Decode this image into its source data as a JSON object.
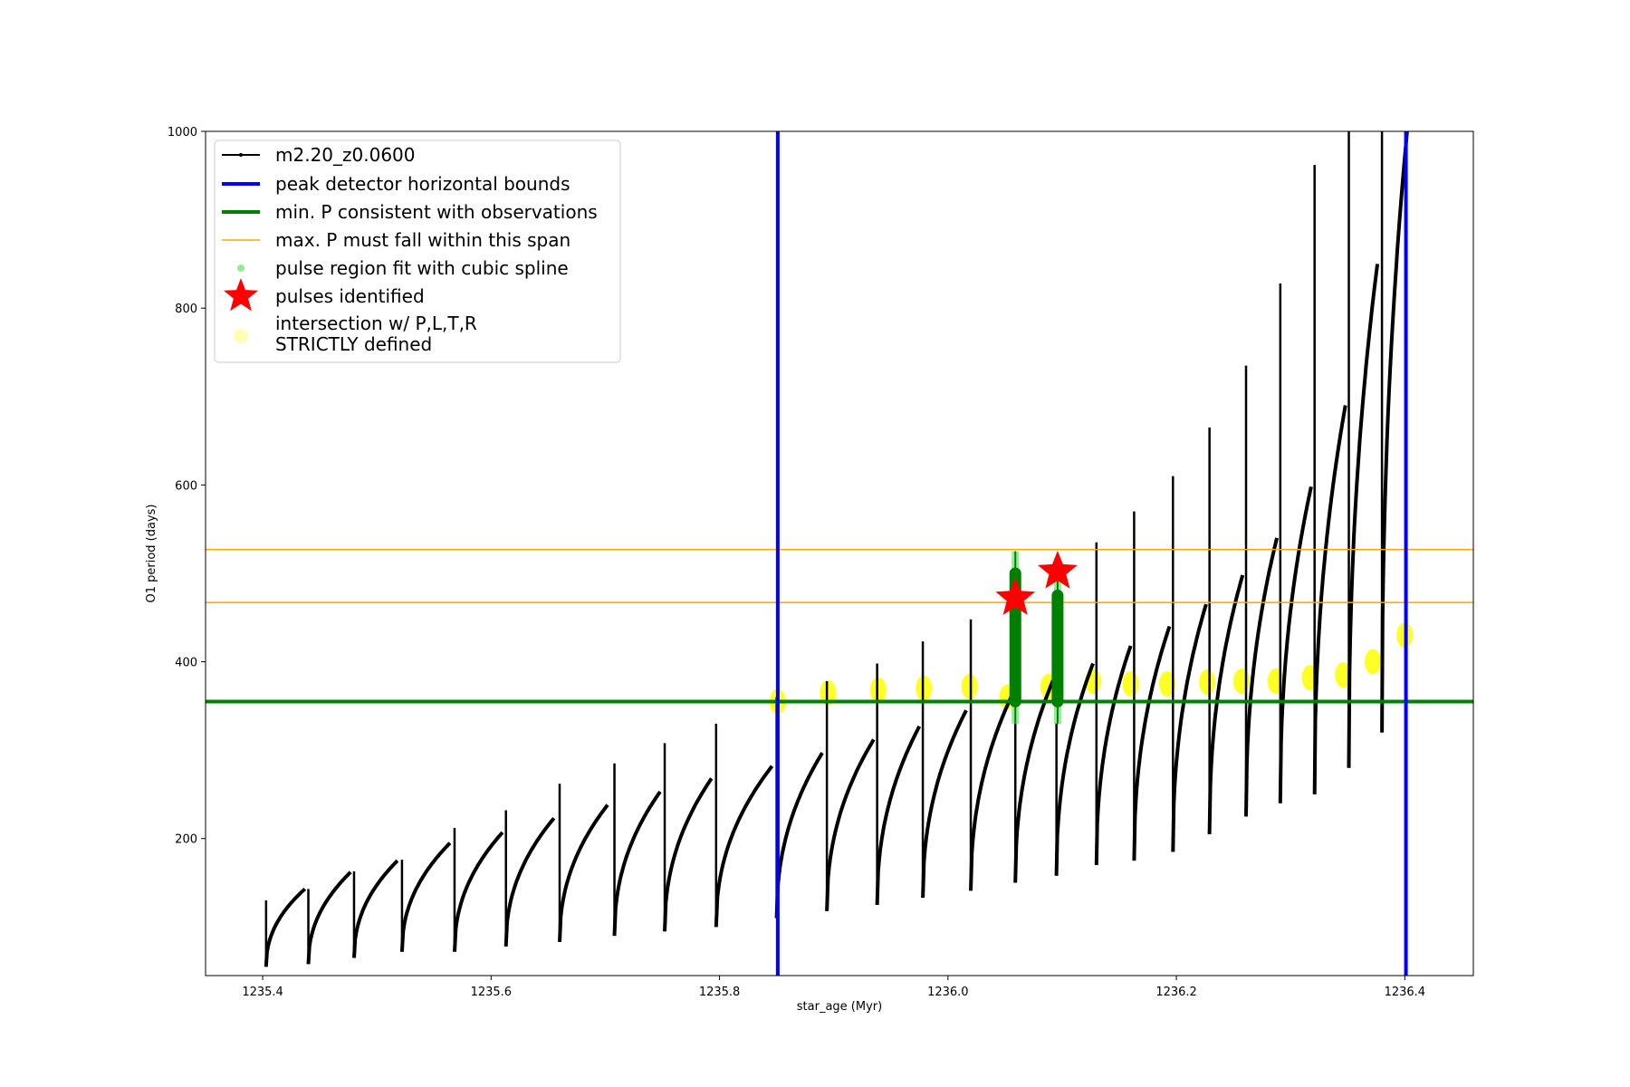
{
  "chart_data": {
    "type": "line",
    "title": "",
    "xlabel": "star_age (Myr)",
    "ylabel": "O1 period (days)",
    "xlim": [
      1235.35,
      1236.46
    ],
    "ylim": [
      45,
      1000
    ],
    "xticks": [
      1235.4,
      1235.6,
      1235.8,
      1236.0,
      1236.2,
      1236.4
    ],
    "xtick_labels": [
      "1235.4",
      "1235.6",
      "1235.8",
      "1236.0",
      "1236.2",
      "1236.4"
    ],
    "yticks": [
      200,
      400,
      600,
      800,
      1000
    ],
    "ytick_labels": [
      "200",
      "400",
      "600",
      "800",
      "1000"
    ],
    "grid": false,
    "legend_position": "top-left",
    "colors": {
      "series": "#000000",
      "bounds": "#0000ff",
      "min_p": "#008000",
      "max_p": "#ffa500",
      "spline": "#90ee90",
      "pulses": "#ff0000",
      "intersection": "#ffff00"
    },
    "series": [
      {
        "name": "m2.20_z0.0600",
        "style": "black line with small dots",
        "pulse_cycles": [
          {
            "start": 1235.403,
            "end": 1235.437,
            "min": 55,
            "peak": 143,
            "spike": 130
          },
          {
            "start": 1235.44,
            "end": 1235.477,
            "min": 58,
            "peak": 162,
            "spike": 143
          },
          {
            "start": 1235.48,
            "end": 1235.518,
            "min": 65,
            "peak": 175,
            "spike": 163
          },
          {
            "start": 1235.522,
            "end": 1235.564,
            "min": 72,
            "peak": 195,
            "spike": 176
          },
          {
            "start": 1235.568,
            "end": 1235.61,
            "min": 72,
            "peak": 207,
            "spike": 212
          },
          {
            "start": 1235.613,
            "end": 1235.655,
            "min": 78,
            "peak": 223,
            "spike": 232
          },
          {
            "start": 1235.66,
            "end": 1235.702,
            "min": 83,
            "peak": 238,
            "spike": 262
          },
          {
            "start": 1235.708,
            "end": 1235.748,
            "min": 90,
            "peak": 253,
            "spike": 285
          },
          {
            "start": 1235.752,
            "end": 1235.793,
            "min": 95,
            "peak": 268,
            "spike": 308
          },
          {
            "start": 1235.797,
            "end": 1235.846,
            "min": 100,
            "peak": 282,
            "spike": 330
          },
          {
            "start": 1235.85,
            "end": 1235.89,
            "min": 110,
            "peak": 297,
            "spike": 360
          },
          {
            "start": 1235.894,
            "end": 1235.935,
            "min": 118,
            "peak": 312,
            "spike": 378
          },
          {
            "start": 1235.938,
            "end": 1235.975,
            "min": 125,
            "peak": 327,
            "spike": 398
          },
          {
            "start": 1235.978,
            "end": 1236.016,
            "min": 133,
            "peak": 345,
            "spike": 423
          },
          {
            "start": 1236.02,
            "end": 1236.056,
            "min": 141,
            "peak": 362,
            "spike": 448
          },
          {
            "start": 1236.059,
            "end": 1236.092,
            "min": 150,
            "peak": 379,
            "spike": 490
          },
          {
            "start": 1236.095,
            "end": 1236.127,
            "min": 158,
            "peak": 398,
            "spike": 505
          },
          {
            "start": 1236.13,
            "end": 1236.16,
            "min": 170,
            "peak": 418,
            "spike": 535
          },
          {
            "start": 1236.163,
            "end": 1236.194,
            "min": 175,
            "peak": 440,
            "spike": 570
          },
          {
            "start": 1236.197,
            "end": 1236.226,
            "min": 185,
            "peak": 465,
            "spike": 610
          },
          {
            "start": 1236.229,
            "end": 1236.258,
            "min": 205,
            "peak": 498,
            "spike": 665
          },
          {
            "start": 1236.261,
            "end": 1236.288,
            "min": 225,
            "peak": 540,
            "spike": 735
          },
          {
            "start": 1236.291,
            "end": 1236.318,
            "min": 240,
            "peak": 598,
            "spike": 828
          },
          {
            "start": 1236.321,
            "end": 1236.348,
            "min": 250,
            "peak": 690,
            "spike": 962
          },
          {
            "start": 1236.351,
            "end": 1236.376,
            "min": 280,
            "peak": 850,
            "spike": 1000
          },
          {
            "start": 1236.38,
            "end": 1236.402,
            "min": 320,
            "peak": 1000,
            "spike": 1000
          }
        ]
      },
      {
        "name": "peak detector horizontal bounds",
        "type": "vline",
        "x": [
          1235.851,
          1236.401
        ]
      },
      {
        "name": "min. P consistent with observations",
        "type": "hline",
        "y": [
          355
        ]
      },
      {
        "name": "max. P must fall within this span",
        "type": "hline",
        "y": [
          467,
          527
        ]
      },
      {
        "name": "pulse region fit with cubic spline",
        "type": "scatter",
        "points": [
          [
            1236.059,
            330
          ],
          [
            1236.059,
            525
          ],
          [
            1236.096,
            330
          ],
          [
            1236.096,
            500
          ]
        ]
      },
      {
        "name": "pulses identified",
        "type": "scatter",
        "marker": "star",
        "points": [
          [
            1236.059,
            472
          ],
          [
            1236.096,
            502
          ]
        ]
      },
      {
        "name": "intersection w/ P,L,T,R\nSTRICTLY defined",
        "type": "scatter",
        "points": [
          [
            1235.851,
            355
          ],
          [
            1235.895,
            365
          ],
          [
            1235.939,
            368
          ],
          [
            1235.979,
            370
          ],
          [
            1236.019,
            372
          ],
          [
            1236.052,
            360
          ],
          [
            1236.088,
            372
          ],
          [
            1236.127,
            378
          ],
          [
            1236.16,
            375
          ],
          [
            1236.192,
            375
          ],
          [
            1236.227,
            377
          ],
          [
            1236.257,
            378
          ],
          [
            1236.287,
            378
          ],
          [
            1236.317,
            382
          ],
          [
            1236.346,
            385
          ],
          [
            1236.372,
            400
          ],
          [
            1236.4,
            430
          ]
        ]
      }
    ]
  },
  "legend": [
    {
      "key": "series",
      "label": "m2.20_z0.0600"
    },
    {
      "key": "bounds",
      "label": "peak detector horizontal bounds"
    },
    {
      "key": "min_p",
      "label": "min. P consistent with observations"
    },
    {
      "key": "max_p",
      "label": "max. P must fall within this span"
    },
    {
      "key": "spline",
      "label": "pulse region fit with cubic spline"
    },
    {
      "key": "pulses",
      "label": "pulses identified"
    },
    {
      "key": "intersection",
      "label_line1": "intersection w/ P,L,T,R",
      "label_line2": "STRICTLY defined"
    }
  ]
}
